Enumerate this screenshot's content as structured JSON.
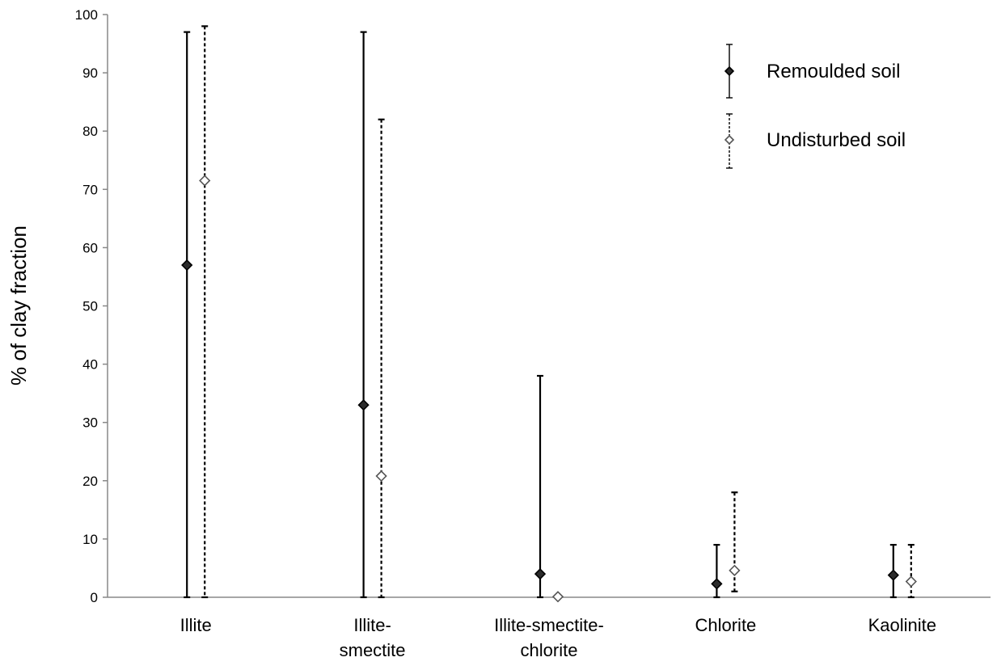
{
  "chart_data": {
    "type": "scatter",
    "categories": [
      "Illite",
      "Illite-smectite",
      "Illite-smectite-chlorite",
      "Chlorite",
      "Kaolinite"
    ],
    "category_label_lines": [
      [
        "Illite"
      ],
      [
        "Illite-",
        "smectite"
      ],
      [
        "Illite-smectite-",
        "chlorite"
      ],
      [
        "Chlorite"
      ],
      [
        "Kaolinite"
      ]
    ],
    "ylabel": "% of clay fraction",
    "xlabel": "",
    "ylim": [
      0,
      100
    ],
    "yticks": [
      0,
      10,
      20,
      30,
      40,
      50,
      60,
      70,
      80,
      90,
      100
    ],
    "grid": false,
    "legend_position": "top-right",
    "series": [
      {
        "name": "Remoulded soil",
        "marker": "filled-diamond",
        "line_style": "solid",
        "color": "#000000",
        "values": [
          57,
          33,
          4,
          2.3,
          3.8
        ],
        "min": [
          0,
          0,
          0,
          0,
          0
        ],
        "max": [
          97,
          97,
          38,
          9,
          9
        ]
      },
      {
        "name": "Undisturbed soil",
        "marker": "open-diamond",
        "line_style": "dashed",
        "color": "#000000",
        "values": [
          71.5,
          20.8,
          0.1,
          4.6,
          2.7
        ],
        "min": [
          0,
          0,
          0,
          1,
          0
        ],
        "max": [
          98,
          82,
          0.1,
          18,
          9
        ]
      }
    ]
  }
}
